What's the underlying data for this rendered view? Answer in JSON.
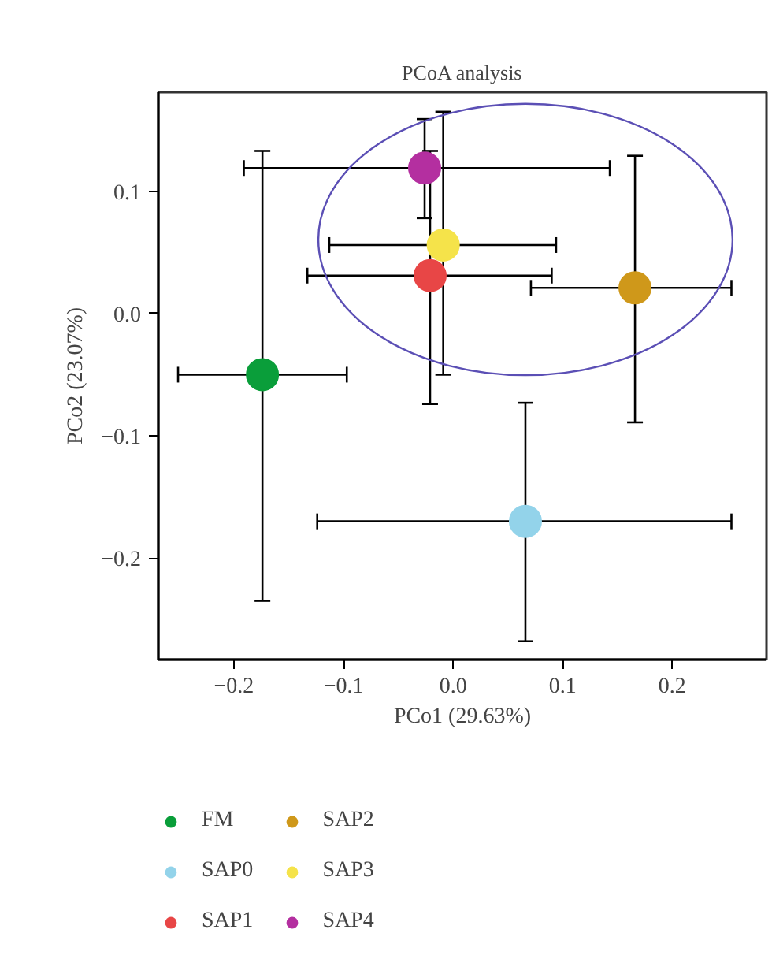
{
  "chart_data": {
    "type": "scatter",
    "title": "PCoA analysis",
    "xlabel": "PCo1 (29.63%)",
    "ylabel": "PCo2 (23.07%)",
    "xlim": [
      -0.269,
      0.286
    ],
    "ylim": [
      -0.283,
      0.181
    ],
    "xticks": [
      {
        "value": -0.2,
        "label": "−0.2"
      },
      {
        "value": -0.1,
        "label": "−0.1"
      },
      {
        "value": 0.0,
        "label": "0.0"
      },
      {
        "value": 0.1,
        "label": "0.1"
      },
      {
        "value": 0.2,
        "label": "0.2"
      }
    ],
    "yticks": [
      {
        "value": -0.2,
        "label": "−0.2"
      },
      {
        "value": -0.1,
        "label": "−0.1"
      },
      {
        "value": 0.0,
        "label": "0.0"
      },
      {
        "value": 0.1,
        "label": "0.1"
      }
    ],
    "grid": false,
    "legend": "bottom",
    "marker": "circle",
    "series": [
      {
        "name": "FM",
        "color": "#0a9e3a",
        "x": [
          -0.174
        ],
        "values": [
          -0.05
        ],
        "errors": [
          [
            -0.235,
            0.133
          ]
        ],
        "xerrors": [
          [
            -0.251,
            -0.097
          ]
        ]
      },
      {
        "name": "SAP0",
        "color": "#93d3ea",
        "x": [
          0.066
        ],
        "values": [
          -0.17
        ],
        "errors": [
          [
            -0.268,
            -0.073
          ]
        ],
        "xerrors": [
          [
            -0.124,
            0.254
          ]
        ]
      },
      {
        "name": "SAP1",
        "color": "#e84646",
        "x": [
          -0.021
        ],
        "values": [
          0.031
        ],
        "errors": [
          [
            -0.074,
            0.133
          ]
        ],
        "xerrors": [
          [
            -0.133,
            0.09
          ]
        ]
      },
      {
        "name": "SAP2",
        "color": "#cf981a",
        "x": [
          0.166
        ],
        "values": [
          0.021
        ],
        "errors": [
          [
            -0.089,
            0.129
          ]
        ],
        "xerrors": [
          [
            0.071,
            0.254
          ]
        ]
      },
      {
        "name": "SAP3",
        "color": "#f5e34a",
        "x": [
          -0.009
        ],
        "values": [
          0.056
        ],
        "errors": [
          [
            -0.05,
            0.165
          ]
        ],
        "xerrors": [
          [
            -0.113,
            0.094
          ]
        ]
      },
      {
        "name": "SAP4",
        "color": "#b42fa0",
        "x": [
          -0.026
        ],
        "values": [
          0.119
        ],
        "errors": [
          [
            0.078,
            0.159
          ]
        ],
        "xerrors": [
          [
            -0.191,
            0.143
          ]
        ]
      }
    ]
  }
}
